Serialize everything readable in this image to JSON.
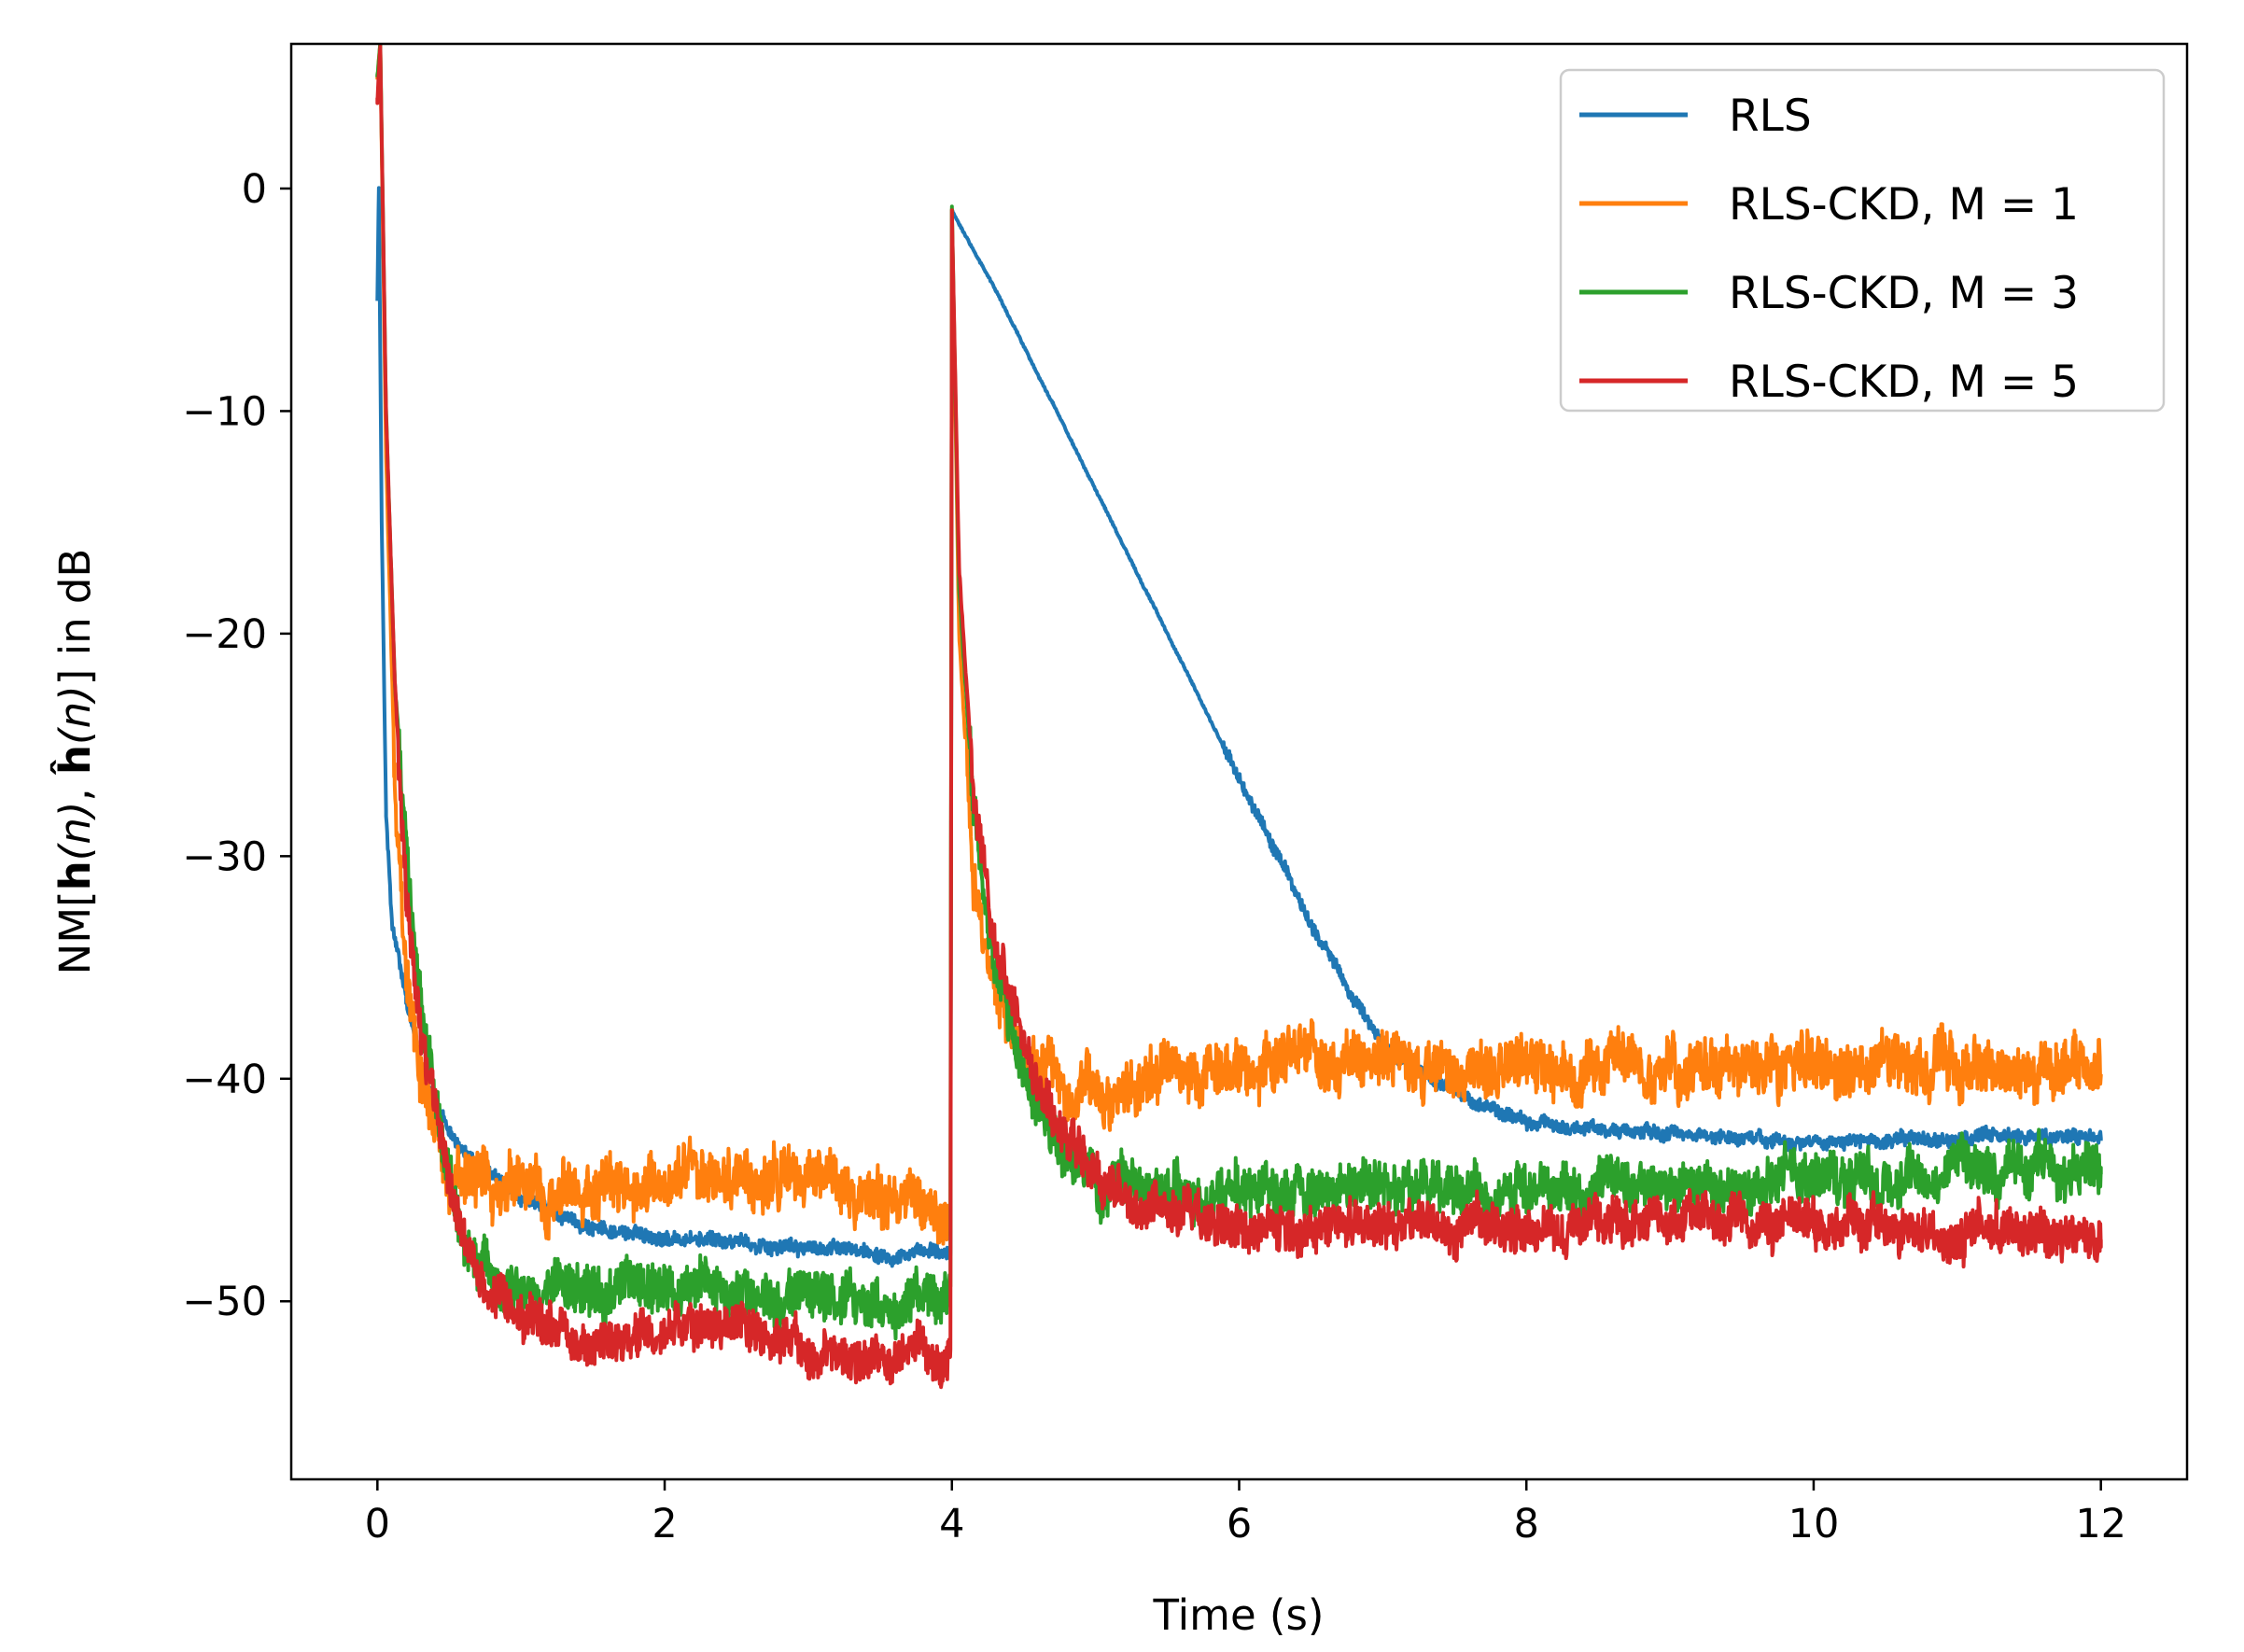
{
  "chart_data": {
    "type": "line",
    "title": "",
    "xlabel": "Time (s)",
    "ylabel": "NM[h(n), ĥ(n)] in dB",
    "ylabel_parts": {
      "pre": "NM[",
      "h1": "h",
      "n1": "(n)",
      "mid": ", ",
      "h2": "ĥ",
      "n2": "(n)",
      "post": "] in dB"
    },
    "xlim": [
      -0.6,
      12.6
    ],
    "ylim": [
      -58,
      6.5
    ],
    "x_ticks": [
      0,
      2,
      4,
      6,
      8,
      10,
      12
    ],
    "x_tick_labels": [
      "0",
      "2",
      "4",
      "6",
      "8",
      "10",
      "12"
    ],
    "y_ticks": [
      0,
      -10,
      -20,
      -30,
      -40,
      -50
    ],
    "y_tick_labels": [
      "0",
      "−10",
      "−20",
      "−30",
      "−40",
      "−50"
    ],
    "grid": false,
    "legend_position": "top-right",
    "series": [
      {
        "name": "RLS",
        "color": "#1f77b4",
        "noise": 0.5,
        "points": [
          [
            0,
            -5
          ],
          [
            0.01,
            0
          ],
          [
            0.03,
            -15
          ],
          [
            0.06,
            -28
          ],
          [
            0.1,
            -33
          ],
          [
            0.2,
            -36.5
          ],
          [
            0.3,
            -39.5
          ],
          [
            0.5,
            -42.5
          ],
          [
            0.7,
            -44
          ],
          [
            1,
            -45.5
          ],
          [
            1.5,
            -46.7
          ],
          [
            2,
            -47.1
          ],
          [
            3,
            -47.6
          ],
          [
            3.97,
            -47.9
          ],
          [
            3.99,
            -48
          ],
          [
            4.0,
            -1
          ],
          [
            4.3,
            -4.5
          ],
          [
            5,
            -13.5
          ],
          [
            5.5,
            -20
          ],
          [
            6,
            -26.5
          ],
          [
            6.5,
            -33
          ],
          [
            6.85,
            -37
          ],
          [
            7,
            -38.5
          ],
          [
            7.5,
            -40.6
          ],
          [
            8,
            -42
          ],
          [
            9,
            -42.5
          ],
          [
            10,
            -42.8
          ],
          [
            11,
            -42.7
          ],
          [
            12,
            -42.6
          ]
        ]
      },
      {
        "name": "RLS-CKD, M = 1",
        "color": "#ff7f0e",
        "noise": 2.0,
        "points": [
          [
            0,
            5
          ],
          [
            0.02,
            6.5
          ],
          [
            0.06,
            -12
          ],
          [
            0.12,
            -26
          ],
          [
            0.2,
            -35
          ],
          [
            0.3,
            -40
          ],
          [
            0.5,
            -44
          ],
          [
            0.8,
            -45.5
          ],
          [
            1.5,
            -45
          ],
          [
            2,
            -44.5
          ],
          [
            3,
            -44.5
          ],
          [
            3.97,
            -45.5
          ],
          [
            3.99,
            -45.5
          ],
          [
            4.0,
            -1
          ],
          [
            4.05,
            -20
          ],
          [
            4.15,
            -31
          ],
          [
            4.3,
            -36
          ],
          [
            4.6,
            -40
          ],
          [
            5,
            -40.5
          ],
          [
            6,
            -39.5
          ],
          [
            8,
            -39.5
          ],
          [
            10,
            -39.5
          ],
          [
            12,
            -39.5
          ]
        ]
      },
      {
        "name": "RLS-CKD, M = 3",
        "color": "#2ca02c",
        "noise": 1.8,
        "points": [
          [
            0,
            5
          ],
          [
            0.02,
            6.5
          ],
          [
            0.06,
            -10
          ],
          [
            0.12,
            -22
          ],
          [
            0.2,
            -30
          ],
          [
            0.3,
            -37
          ],
          [
            0.45,
            -43
          ],
          [
            0.6,
            -47
          ],
          [
            0.8,
            -49
          ],
          [
            1.2,
            -49.5
          ],
          [
            2,
            -49.5
          ],
          [
            3,
            -49.8
          ],
          [
            3.97,
            -50
          ],
          [
            3.99,
            -50
          ],
          [
            4.0,
            -1
          ],
          [
            4.05,
            -18
          ],
          [
            4.15,
            -28
          ],
          [
            4.3,
            -35
          ],
          [
            4.5,
            -40
          ],
          [
            4.75,
            -43
          ],
          [
            5,
            -45
          ],
          [
            6,
            -45
          ],
          [
            8,
            -45
          ],
          [
            10,
            -44.5
          ],
          [
            12,
            -44
          ]
        ]
      },
      {
        "name": "RLS-CKD, M = 5",
        "color": "#d62728",
        "noise": 1.6,
        "points": [
          [
            0,
            4
          ],
          [
            0.02,
            6.5
          ],
          [
            0.06,
            -10
          ],
          [
            0.12,
            -22
          ],
          [
            0.2,
            -31
          ],
          [
            0.3,
            -37.5
          ],
          [
            0.45,
            -43
          ],
          [
            0.6,
            -47
          ],
          [
            0.8,
            -49.5
          ],
          [
            1,
            -50.5
          ],
          [
            1.5,
            -52
          ],
          [
            2,
            -51.5
          ],
          [
            2.5,
            -51
          ],
          [
            3,
            -52
          ],
          [
            3.97,
            -52.5
          ],
          [
            3.99,
            -52.5
          ],
          [
            4.0,
            -1
          ],
          [
            4.05,
            -17
          ],
          [
            4.15,
            -27
          ],
          [
            4.3,
            -34
          ],
          [
            4.5,
            -39
          ],
          [
            4.8,
            -43
          ],
          [
            5.2,
            -45.5
          ],
          [
            6,
            -46.5
          ],
          [
            7,
            -46.5
          ],
          [
            8,
            -46.5
          ],
          [
            9,
            -46.5
          ],
          [
            10,
            -46.5
          ],
          [
            11,
            -47
          ],
          [
            12,
            -47
          ]
        ]
      }
    ]
  }
}
